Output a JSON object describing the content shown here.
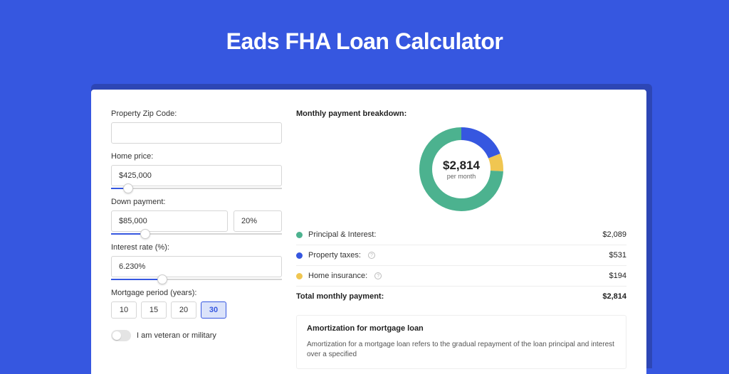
{
  "header": {
    "title": "Eads FHA Loan Calculator"
  },
  "colors": {
    "page_bg": "#3657e0",
    "shadow": "#2d46b5",
    "card_bg": "#ffffff",
    "principal": "#4cb28f",
    "taxes": "#3657e0",
    "insurance": "#f0c651",
    "slider_fill": "#3657e0",
    "border": "#d6d6d6"
  },
  "form": {
    "zip_label": "Property Zip Code:",
    "zip_value": "",
    "home_price_label": "Home price:",
    "home_price_value": "$425,000",
    "home_price_slider_pct": 10,
    "down_label": "Down payment:",
    "down_value": "$85,000",
    "down_pct_value": "20%",
    "down_slider_pct": 20,
    "rate_label": "Interest rate (%):",
    "rate_value": "6.230%",
    "rate_slider_pct": 30,
    "period_label": "Mortgage period (years):",
    "period_options": [
      "10",
      "15",
      "20",
      "30"
    ],
    "period_selected": "30",
    "veteran_label": "I am veteran or military",
    "veteran_on": false
  },
  "breakdown": {
    "title": "Monthly payment breakdown:",
    "donut": {
      "amount": "$2,814",
      "subtitle": "per month",
      "segments": [
        {
          "key": "principal",
          "color": "#4cb28f",
          "value": 2089
        },
        {
          "key": "taxes",
          "color": "#3657e0",
          "value": 531
        },
        {
          "key": "insurance",
          "color": "#f0c651",
          "value": 194
        }
      ],
      "total_value": 2814,
      "stroke_width": 18,
      "radius": 50
    },
    "rows": [
      {
        "label": "Principal & Interest:",
        "value": "$2,089",
        "color": "#4cb28f",
        "info": false
      },
      {
        "label": "Property taxes:",
        "value": "$531",
        "color": "#3657e0",
        "info": true
      },
      {
        "label": "Home insurance:",
        "value": "$194",
        "color": "#f0c651",
        "info": true
      }
    ],
    "total_label": "Total monthly payment:",
    "total_value": "$2,814"
  },
  "amortization": {
    "title": "Amortization for mortgage loan",
    "text": "Amortization for a mortgage loan refers to the gradual repayment of the loan principal and interest over a specified"
  }
}
